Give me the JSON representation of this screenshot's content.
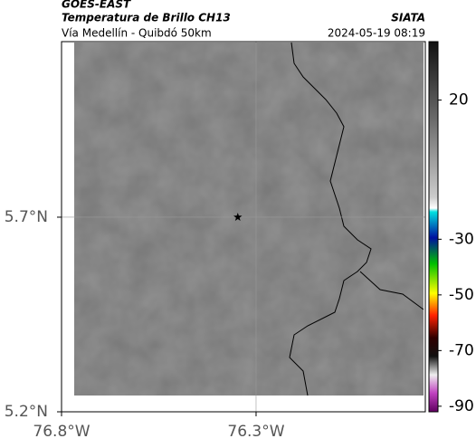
{
  "header": {
    "source": "GOES-EAST",
    "product": "Temperatura de Brillo CH13",
    "org": "SIATA",
    "region": "Vía Medellín - Quibdó 50km",
    "datetime": "2024-05-19 08:19"
  },
  "chart_data": {
    "type": "map",
    "xlim": [
      -76.8,
      -75.865
    ],
    "ylim": [
      5.2,
      6.151
    ],
    "xticks": [
      {
        "value": -76.8,
        "label": "76.8°W"
      },
      {
        "value": -76.3,
        "label": "76.3°W"
      }
    ],
    "yticks": [
      {
        "value": 5.2,
        "label": "5.2°N"
      },
      {
        "value": 5.7,
        "label": "5.7°N"
      }
    ],
    "grid": true,
    "marker": {
      "lon": -76.347,
      "lat": 5.7,
      "color": "#000"
    },
    "colorbar": {
      "clim": [
        -92,
        41
      ],
      "ticks": [
        20,
        -30,
        -50,
        -70,
        -90
      ]
    }
  }
}
